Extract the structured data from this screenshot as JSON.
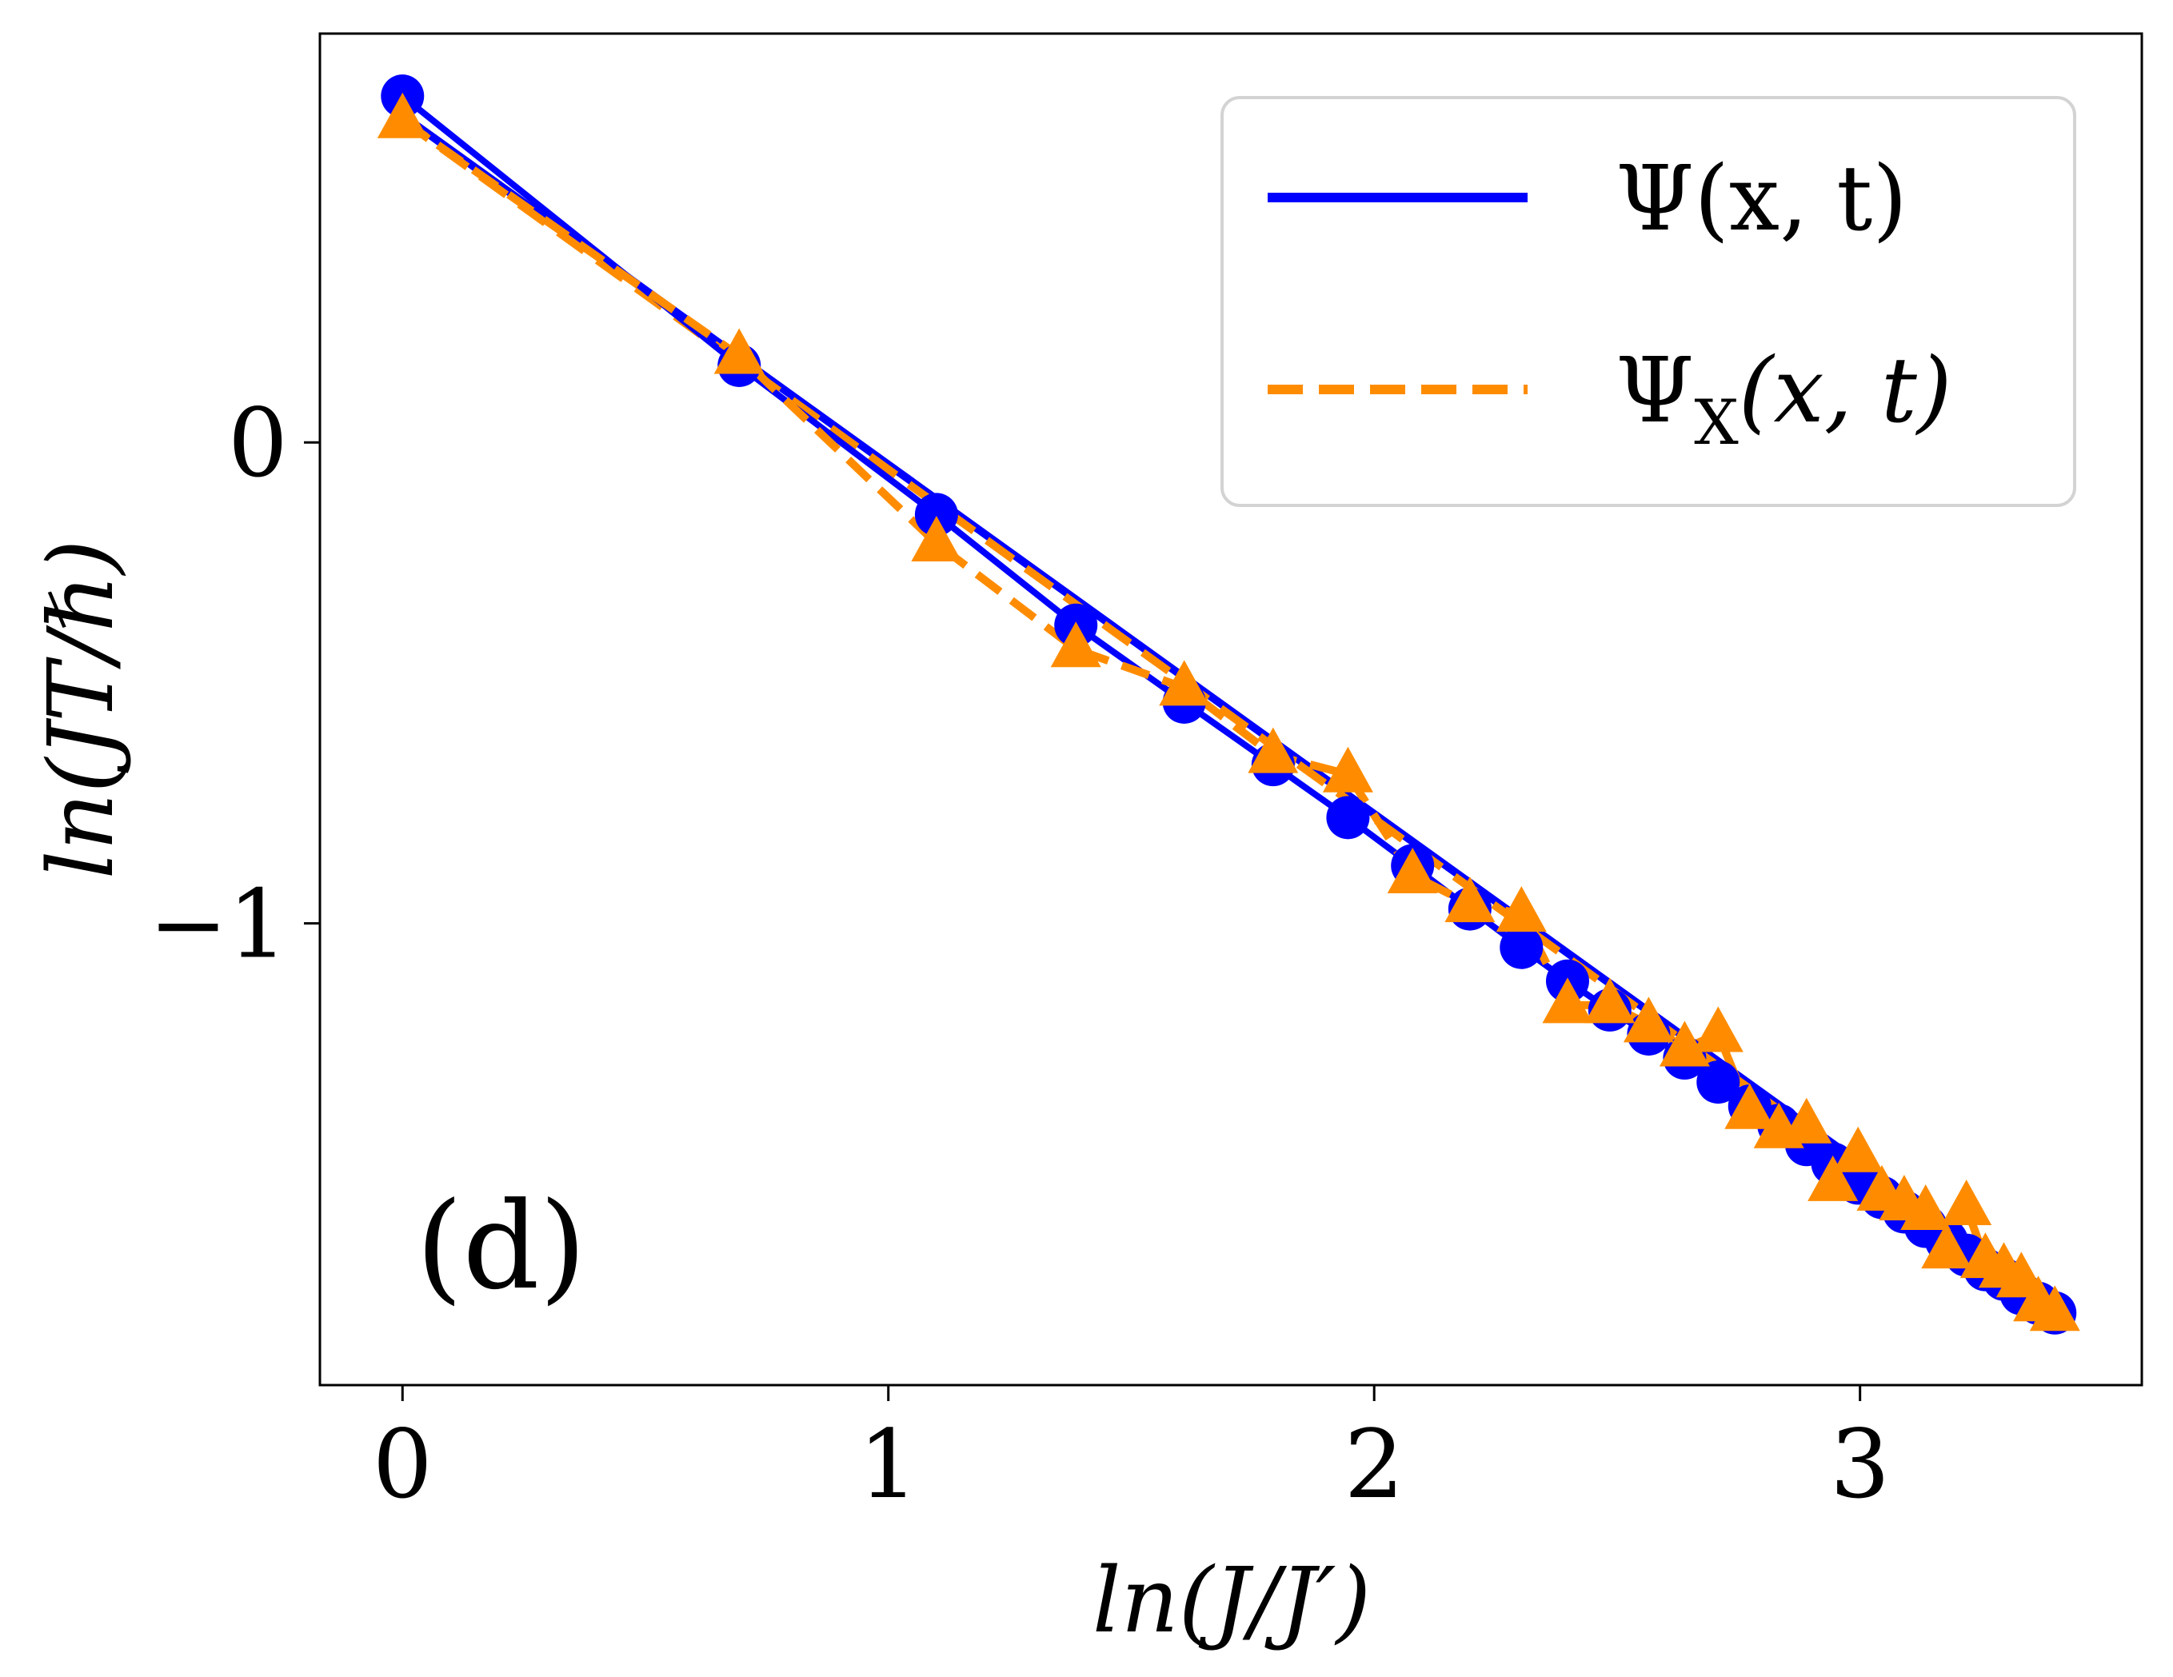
{
  "chart_data": {
    "type": "line",
    "panel_label": "(d)",
    "xlabel": "ln(J/J′)",
    "ylabel": "ln(JT/ℏ)",
    "xlim": [
      -0.17,
      3.58
    ],
    "ylim": [
      -1.96,
      0.85
    ],
    "xticks": [
      0,
      1,
      2,
      3
    ],
    "yticks": [
      0,
      -1
    ],
    "xtick_labels": [
      "0",
      "1",
      "2",
      "3"
    ],
    "ytick_labels": [
      "0",
      "−1"
    ],
    "grid": false,
    "legend_position": "top-right",
    "series": [
      {
        "name": "Ψ(x, t)",
        "legend_main": "Ψ(x, t)",
        "color": "#0000ff",
        "line_style": "solid",
        "marker": "circle",
        "x": [
          0.0,
          0.693,
          1.099,
          1.386,
          1.609,
          1.792,
          1.946,
          2.079,
          2.197,
          2.303,
          2.398,
          2.485,
          2.565,
          2.639,
          2.708,
          2.773,
          2.833,
          2.89,
          2.944,
          2.996,
          3.045,
          3.091,
          3.135,
          3.178,
          3.219,
          3.258,
          3.296,
          3.332,
          3.367,
          3.401
        ],
        "y": [
          0.72,
          0.16,
          -0.15,
          -0.38,
          -0.54,
          -0.67,
          -0.78,
          -0.88,
          -0.97,
          -1.05,
          -1.12,
          -1.18,
          -1.23,
          -1.28,
          -1.33,
          -1.38,
          -1.42,
          -1.46,
          -1.5,
          -1.54,
          -1.57,
          -1.6,
          -1.63,
          -1.66,
          -1.69,
          -1.72,
          -1.74,
          -1.77,
          -1.79,
          -1.81
        ]
      },
      {
        "name": "Ψ_X(x, t)",
        "legend_main": "Ψ",
        "legend_sub": "X",
        "legend_rest": "(x, t)",
        "color": "#ff8c00",
        "line_style": "dashed",
        "marker": "triangle",
        "x": [
          0.0,
          0.693,
          1.099,
          1.386,
          1.609,
          1.792,
          1.946,
          2.079,
          2.197,
          2.303,
          2.398,
          2.485,
          2.565,
          2.639,
          2.708,
          2.773,
          2.833,
          2.89,
          2.944,
          2.996,
          3.045,
          3.091,
          3.135,
          3.178,
          3.219,
          3.258,
          3.296,
          3.332,
          3.367,
          3.401
        ],
        "y": [
          0.67,
          0.18,
          -0.21,
          -0.43,
          -0.51,
          -0.65,
          -0.69,
          -0.9,
          -0.96,
          -0.98,
          -1.17,
          -1.17,
          -1.21,
          -1.26,
          -1.23,
          -1.39,
          -1.43,
          -1.42,
          -1.54,
          -1.48,
          -1.56,
          -1.58,
          -1.6,
          -1.68,
          -1.59,
          -1.7,
          -1.72,
          -1.74,
          -1.79,
          -1.81
        ]
      }
    ],
    "fit_lines": [
      {
        "series": "Ψ(x, t)",
        "x": [
          0.0,
          3.401
        ],
        "y": [
          0.68,
          -1.79
        ]
      },
      {
        "series": "Ψ_X(x, t)",
        "x": [
          0.0,
          3.401
        ],
        "y": [
          0.67,
          -1.8
        ]
      }
    ]
  }
}
